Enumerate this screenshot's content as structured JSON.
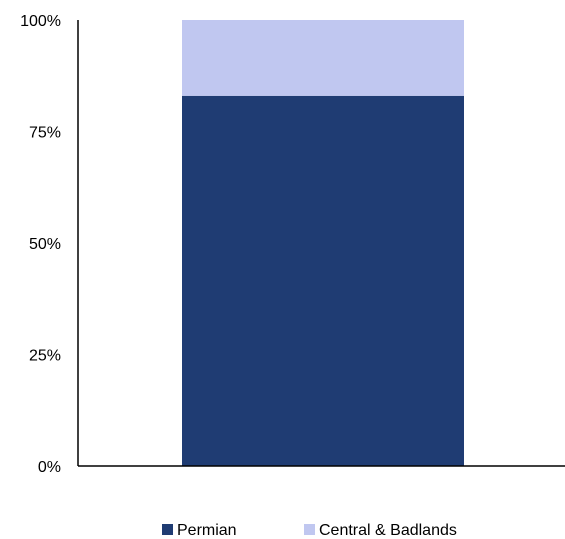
{
  "chart_data": {
    "type": "bar",
    "stacked": true,
    "categories": [
      ""
    ],
    "series": [
      {
        "name": "Permian",
        "values": [
          0.83
        ],
        "color": "#1f3c73"
      },
      {
        "name": "Central & Badlands",
        "values": [
          0.17
        ],
        "color": "#c0c7f0"
      }
    ],
    "ylim": [
      0,
      1
    ],
    "yticks": [
      {
        "value": 0,
        "label": "0%"
      },
      {
        "value": 0.25,
        "label": "25%"
      },
      {
        "value": 0.5,
        "label": "50%"
      },
      {
        "value": 0.75,
        "label": "75%"
      },
      {
        "value": 1,
        "label": "100%"
      }
    ],
    "grid": false,
    "legend_position": "bottom",
    "title": "",
    "xlabel": "",
    "ylabel": ""
  }
}
